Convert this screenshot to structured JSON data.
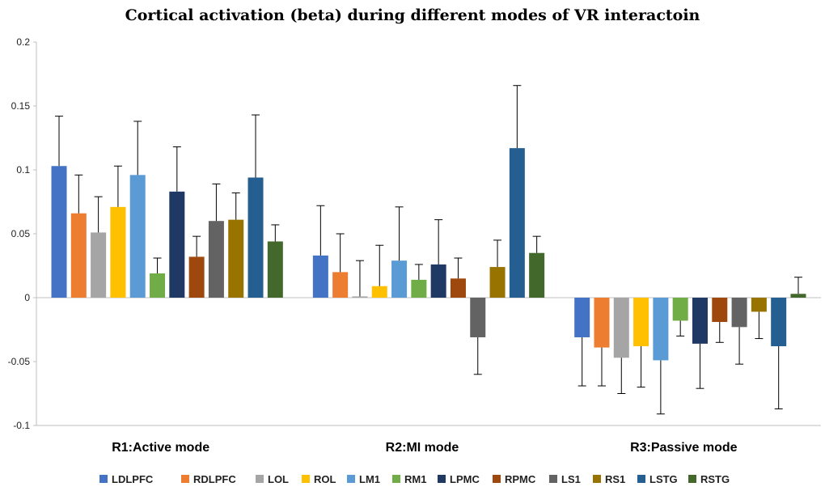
{
  "chart_data": {
    "type": "bar",
    "title": "Cortical activation (beta) during different modes of VR interactoin",
    "xlabel": "",
    "ylabel": "",
    "ylim": [
      -0.1,
      0.2
    ],
    "yticks": [
      -0.1,
      -0.05,
      0,
      0.05,
      0.1,
      0.15,
      0.2
    ],
    "ytick_labels": [
      "-0.1",
      "-0.05",
      "0",
      "0.05",
      "0.1",
      "0.15",
      "0.2"
    ],
    "grid": false,
    "legend_position": "bottom",
    "categories": [
      "R1:Active mode",
      "R2:MI mode",
      "R3:Passive mode"
    ],
    "series": [
      {
        "name": "LDLPFC",
        "color": "#4472C4",
        "values": [
          0.103,
          0.033,
          -0.031
        ],
        "errors": [
          0.039,
          0.039,
          0.038
        ]
      },
      {
        "name": "RDLPFC",
        "color": "#ED7D31",
        "values": [
          0.066,
          0.02,
          -0.039
        ],
        "errors": [
          0.03,
          0.03,
          0.03
        ]
      },
      {
        "name": "LOL",
        "color": "#A5A5A5",
        "values": [
          0.051,
          0.001,
          -0.047
        ],
        "errors": [
          0.028,
          0.028,
          0.028
        ]
      },
      {
        "name": "ROL",
        "color": "#FFC000",
        "values": [
          0.071,
          0.009,
          -0.038
        ],
        "errors": [
          0.032,
          0.032,
          0.032
        ]
      },
      {
        "name": "LM1",
        "color": "#5B9BD5",
        "values": [
          0.096,
          0.029,
          -0.049
        ],
        "errors": [
          0.042,
          0.042,
          0.042
        ]
      },
      {
        "name": "RM1",
        "color": "#70AD47",
        "values": [
          0.019,
          0.014,
          -0.018
        ],
        "errors": [
          0.012,
          0.012,
          0.012
        ]
      },
      {
        "name": "LPMC",
        "color": "#203864",
        "values": [
          0.083,
          0.026,
          -0.036
        ],
        "errors": [
          0.035,
          0.035,
          0.035
        ]
      },
      {
        "name": "RPMC",
        "color": "#9E480E",
        "values": [
          0.032,
          0.015,
          -0.019
        ],
        "errors": [
          0.016,
          0.016,
          0.016
        ]
      },
      {
        "name": "LS1",
        "color": "#636363",
        "values": [
          0.06,
          -0.031,
          -0.023
        ],
        "errors": [
          0.029,
          0.029,
          0.029
        ]
      },
      {
        "name": "RS1",
        "color": "#997300",
        "values": [
          0.061,
          0.024,
          -0.011
        ],
        "errors": [
          0.021,
          0.021,
          0.021
        ]
      },
      {
        "name": "LSTG",
        "color": "#255E91",
        "values": [
          0.094,
          0.117,
          -0.038
        ],
        "errors": [
          0.049,
          0.049,
          0.049
        ]
      },
      {
        "name": "RSTG",
        "color": "#43682B",
        "values": [
          0.044,
          0.035,
          0.003
        ],
        "errors": [
          0.013,
          0.013,
          0.013
        ]
      }
    ]
  }
}
